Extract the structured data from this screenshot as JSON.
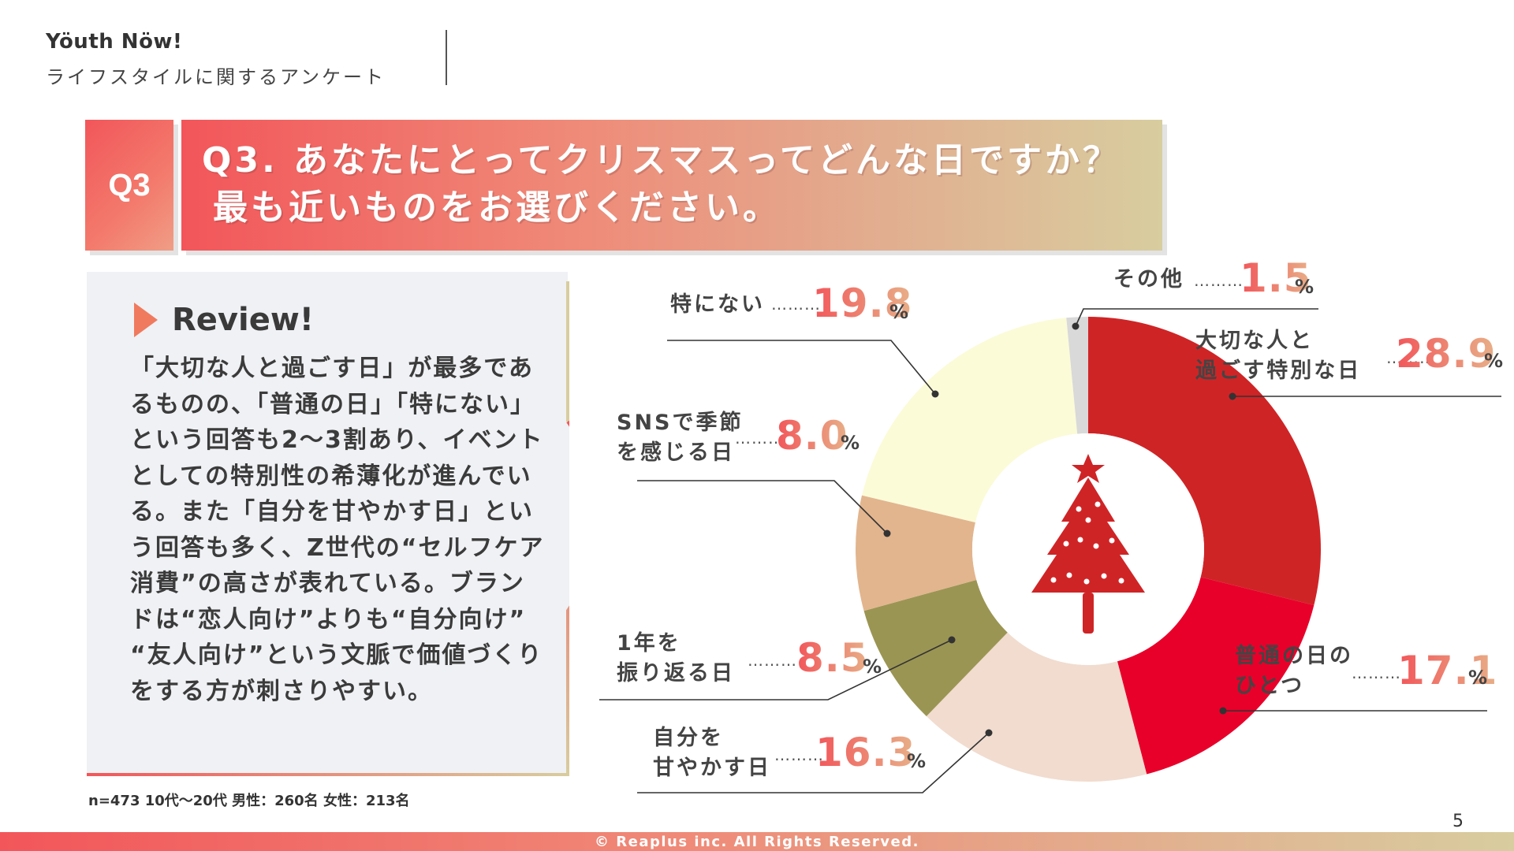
{
  "header": {
    "brand": "Yöuth Nöw!",
    "subtitle": "ライフスタイルに関するアンケート"
  },
  "question": {
    "badge": "Q3",
    "line1": "Q3. あなたにとってクリスマスってどんな日ですか？",
    "line2": "最も近いものをお選びください。"
  },
  "review": {
    "title": "Review!",
    "body": "「大切な人と過ごす日」が最多であるものの、「普通の日」「特にない」という回答も2〜3割あり、イベントとしての特別性の希薄化が進んでいる。また「自分を甘やかす日」という回答も多く、Z世代の“セルフケア消費”の高さが表れている。ブランドは“恋人向け”よりも“自分向け” “友人向け”という文脈で価値づくりをする方が刺さりやすい。"
  },
  "footnote": "n=473 10代〜20代 男性：260名 女性：213名",
  "page_number": "5",
  "footer": "© Reaplus inc. All Rights Reserved.",
  "chart_data": {
    "type": "pie",
    "donut": true,
    "center_icon": "christmas-tree-icon",
    "unit": "%",
    "dots": "………",
    "slices": [
      {
        "label_lines": [
          "大切な人と",
          "過ごす特別な日"
        ],
        "value": 28.9,
        "value_text": "28.9",
        "color": "#cf2426"
      },
      {
        "label_lines": [
          "普通の日の",
          "ひとつ"
        ],
        "value": 17.1,
        "value_text": "17.1",
        "color": "#e8002a"
      },
      {
        "label_lines": [
          "自分を",
          "甘やかす日"
        ],
        "value": 16.3,
        "value_text": "16.3",
        "color": "#f1dccf"
      },
      {
        "label_lines": [
          "1年を",
          "振り返る日"
        ],
        "value": 8.5,
        "value_text": "8.5",
        "color": "#9b9553"
      },
      {
        "label_lines": [
          "SNSで季節",
          "を感じる日"
        ],
        "value": 8.0,
        "value_text": "8.0",
        "color": "#e2b58e"
      },
      {
        "label_lines": [
          "特にない"
        ],
        "value": 19.8,
        "value_text": "19.8",
        "color": "#fbfbd8"
      },
      {
        "label_lines": [
          "その他"
        ],
        "value": 1.5,
        "value_text": "1.5",
        "color": "#d9d9d9"
      }
    ]
  }
}
